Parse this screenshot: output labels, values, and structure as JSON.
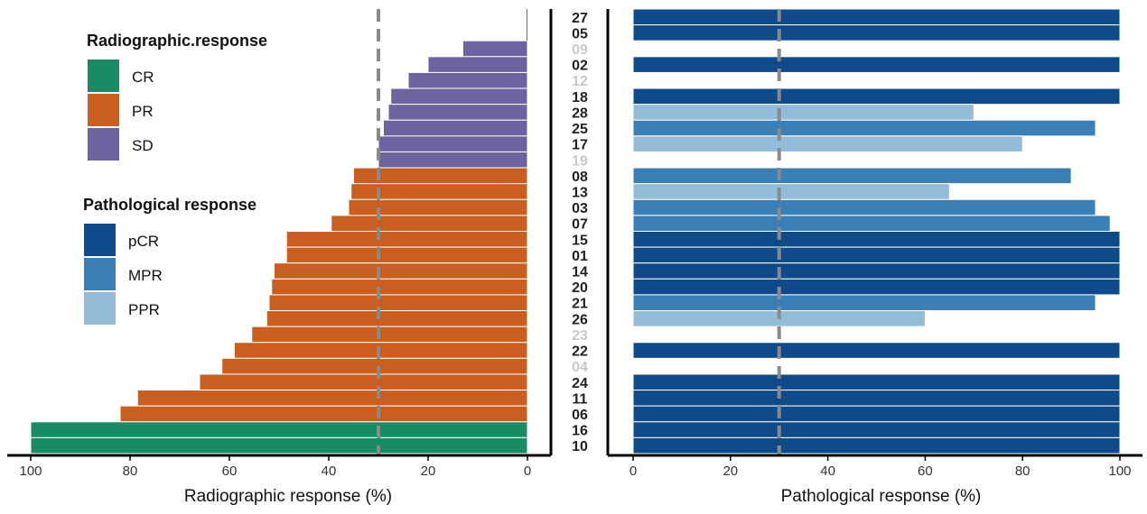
{
  "chart_data": [
    {
      "type": "bar",
      "orientation": "horizontal",
      "direction": "reversed",
      "title": "",
      "xlabel": "Radiographic response (%)",
      "xlim": [
        100,
        0
      ],
      "xticks": [
        "100",
        "80",
        "60",
        "40",
        "20",
        "0"
      ],
      "threshold": 30,
      "categories": [
        "27",
        "05",
        "09",
        "02",
        "12",
        "18",
        "28",
        "25",
        "17",
        "19",
        "08",
        "13",
        "03",
        "07",
        "15",
        "01",
        "14",
        "20",
        "21",
        "26",
        "23",
        "22",
        "04",
        "24",
        "11",
        "06",
        "16",
        "10"
      ],
      "values": [
        0,
        0,
        13,
        20,
        24,
        27.5,
        28,
        29,
        30,
        30,
        35,
        35.5,
        36,
        39.5,
        48.5,
        48.5,
        51,
        51.5,
        52,
        52.5,
        55.5,
        59,
        61.5,
        66,
        78.5,
        82,
        100,
        100
      ],
      "groups": [
        "SD",
        "SD",
        "SD",
        "SD",
        "SD",
        "SD",
        "SD",
        "SD",
        "SD",
        "SD",
        "PR",
        "PR",
        "PR",
        "PR",
        "PR",
        "PR",
        "PR",
        "PR",
        "PR",
        "PR",
        "PR",
        "PR",
        "PR",
        "PR",
        "PR",
        "PR",
        "CR",
        "CR"
      ],
      "legend": {
        "title": "Radiographic.response",
        "entries": [
          {
            "label": "CR",
            "color": "#1a8c63"
          },
          {
            "label": "PR",
            "color": "#c95e1e"
          },
          {
            "label": "SD",
            "color": "#6c63a0"
          }
        ]
      }
    },
    {
      "type": "bar",
      "orientation": "horizontal",
      "title": "",
      "xlabel": "Pathological response (%)",
      "xlim": [
        0,
        100
      ],
      "xticks": [
        "0",
        "20",
        "40",
        "60",
        "80",
        "100"
      ],
      "threshold": 30,
      "categories": [
        "27",
        "05",
        "09",
        "02",
        "12",
        "18",
        "28",
        "25",
        "17",
        "19",
        "08",
        "13",
        "03",
        "07",
        "15",
        "01",
        "14",
        "20",
        "21",
        "26",
        "23",
        "22",
        "04",
        "24",
        "11",
        "06",
        "16",
        "10"
      ],
      "values": [
        100,
        100,
        null,
        100,
        null,
        100,
        70,
        95,
        80,
        null,
        90,
        65,
        95,
        98,
        100,
        100,
        100,
        100,
        95,
        60,
        null,
        100,
        null,
        100,
        100,
        100,
        100,
        100
      ],
      "groups": [
        "pCR",
        "pCR",
        null,
        "pCR",
        null,
        "pCR",
        "PPR",
        "MPR",
        "PPR",
        null,
        "MPR",
        "PPR",
        "MPR",
        "MPR",
        "pCR",
        "pCR",
        "pCR",
        "pCR",
        "MPR",
        "PPR",
        null,
        "pCR",
        null,
        "pCR",
        "pCR",
        "pCR",
        "pCR",
        "pCR"
      ],
      "legend": {
        "title": "Pathological response",
        "entries": [
          {
            "label": "pCR",
            "color": "#0f4a8a"
          },
          {
            "label": "MPR",
            "color": "#3a7fb5"
          },
          {
            "label": "PPR",
            "color": "#93bcd8"
          }
        ]
      }
    }
  ],
  "colors": {
    "label_active": "#222222",
    "label_missing": "#c8c8c8",
    "threshold": "#8a8a8a",
    "axis": "#000000"
  }
}
